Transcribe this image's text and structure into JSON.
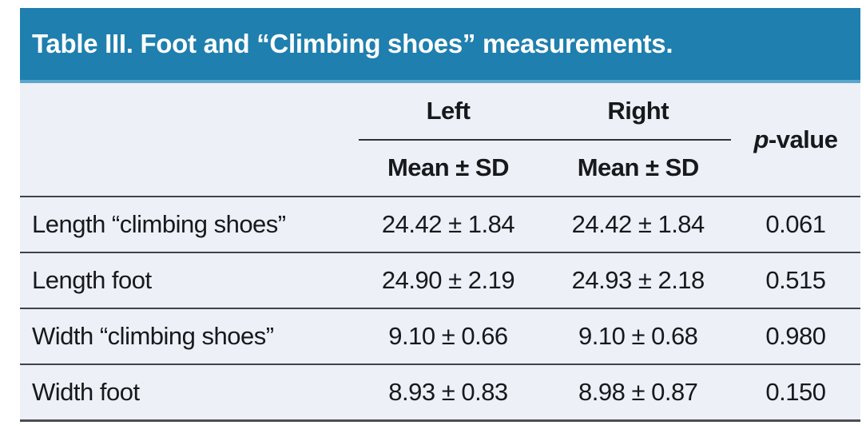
{
  "title": "Table III. Foot and “Climbing shoes” measurements.",
  "header": {
    "left_group": "Left",
    "right_group": "Right",
    "sub_left": "Mean ± SD",
    "sub_right": "Mean ± SD",
    "p_italic": "p",
    "p_rest": "-value"
  },
  "rows": [
    {
      "label": "Length “climbing shoes”",
      "left": "24.42 ± 1.84",
      "right": "24.42 ± 1.84",
      "p": "0.061"
    },
    {
      "label": "Length foot",
      "left": "24.90 ± 2.19",
      "right": "24.93 ± 2.18",
      "p": "0.515"
    },
    {
      "label": "Width “climbing shoes”",
      "left": "9.10 ± 0.66",
      "right": "9.10 ± 0.68",
      "p": "0.980"
    },
    {
      "label": "Width foot",
      "left": "8.93 ± 0.83",
      "right": "8.98 ± 0.87",
      "p": "0.150"
    }
  ],
  "colors": {
    "header_bg": "#1f7fae",
    "header_bottom_edge": "#5aa5cb",
    "body_bg": "#edf0f7",
    "rule_line": "#3f444a",
    "bottom_rule": "#4a4f55",
    "title_text": "#ffffff",
    "body_text": "#17191c"
  }
}
